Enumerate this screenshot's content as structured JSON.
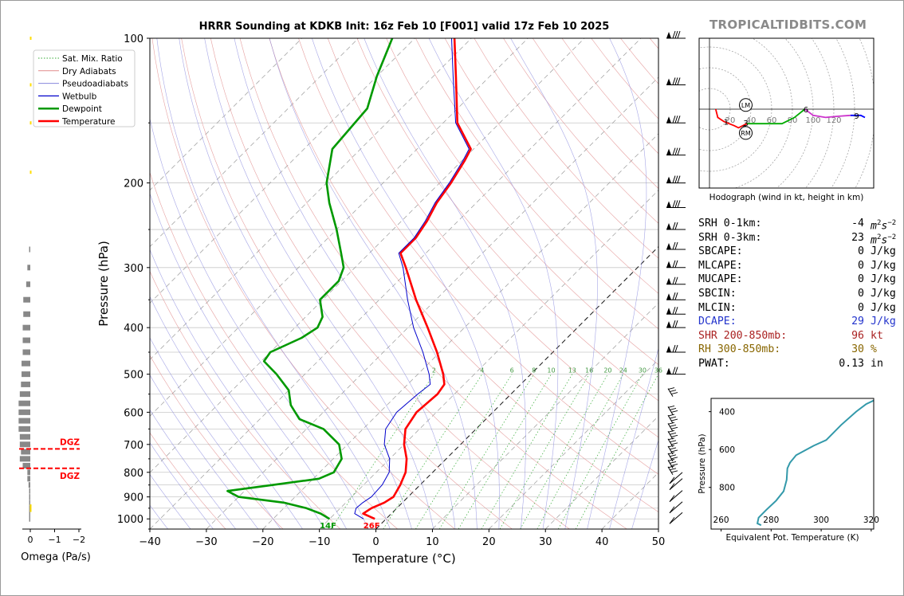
{
  "title": "HRRR Sounding at KDKB Init: 16z Feb 10 [F001] valid 17z Feb 10 2025",
  "brand": "TROPICALTIDBITS.COM",
  "colors": {
    "temperature": "#ff0000",
    "dewpoint": "#009900",
    "wetbulb": "#0000cc",
    "hodo_low": "#ff0000",
    "hodo_mid": "#00aa00",
    "hodo_upper": "#cc33cc",
    "hodo_top": "#0000ff",
    "theta_e": "#3399aa",
    "dgz": "#ff0000",
    "brand": "#8a8a8a"
  },
  "chart_data": [
    {
      "type": "line",
      "name": "skew-t",
      "xlabel": "Temperature (°C)",
      "ylabel": "Pressure (hPa)",
      "xlim": [
        -40,
        50
      ],
      "ylim": [
        1050,
        100
      ],
      "y_scale": "log",
      "x_ticks": [
        "−40",
        "−30",
        "−20",
        "−10",
        "0",
        "10",
        "20",
        "30",
        "40",
        "50"
      ],
      "y_ticks": [
        {
          "p": 100,
          "label": "100"
        },
        {
          "p": 200,
          "label": "200"
        },
        {
          "p": 300,
          "label": "300"
        },
        {
          "p": 400,
          "label": "400"
        },
        {
          "p": 500,
          "label": "500"
        },
        {
          "p": 600,
          "label": "600"
        },
        {
          "p": 700,
          "label": "700"
        },
        {
          "p": 800,
          "label": "800"
        },
        {
          "p": 900,
          "label": "900"
        },
        {
          "p": 1000,
          "label": "1000"
        }
      ],
      "legend": {
        "placement": "top-left",
        "entries": [
          "Sat. Mix. Ratio",
          "Dry Adiabats",
          "Pseudoadiabats",
          "Wetbulb",
          "Dewpoint",
          "Temperature"
        ]
      },
      "mixing_ratio_labels": [
        "2",
        "4",
        "6",
        "8",
        "10",
        "13",
        "16",
        "20",
        "24",
        "30",
        "36"
      ],
      "surface_labels": {
        "dewpoint": "14F",
        "temperature": "26F"
      },
      "series": [
        {
          "name": "Temperature",
          "points": [
            {
              "p": 1000,
              "t": -2.0
            },
            {
              "p": 975,
              "t": -5.0
            },
            {
              "p": 950,
              "t": -4.5
            },
            {
              "p": 925,
              "t": -3.2
            },
            {
              "p": 900,
              "t": -2.6
            },
            {
              "p": 850,
              "t": -3.5
            },
            {
              "p": 800,
              "t": -4.8
            },
            {
              "p": 750,
              "t": -7.0
            },
            {
              "p": 700,
              "t": -10.0
            },
            {
              "p": 650,
              "t": -12.5
            },
            {
              "p": 600,
              "t": -13.5
            },
            {
              "p": 550,
              "t": -13.0
            },
            {
              "p": 525,
              "t": -13.5
            },
            {
              "p": 500,
              "t": -15.5
            },
            {
              "p": 450,
              "t": -20.5
            },
            {
              "p": 400,
              "t": -26.5
            },
            {
              "p": 350,
              "t": -33.5
            },
            {
              "p": 300,
              "t": -41.0
            },
            {
              "p": 280,
              "t": -44.5
            },
            {
              "p": 260,
              "t": -44.5
            },
            {
              "p": 240,
              "t": -45.5
            },
            {
              "p": 220,
              "t": -47.0
            },
            {
              "p": 200,
              "t": -48.0
            },
            {
              "p": 180,
              "t": -49.5
            },
            {
              "p": 170,
              "t": -50.5
            },
            {
              "p": 150,
              "t": -57.5
            },
            {
              "p": 120,
              "t": -66.0
            },
            {
              "p": 100,
              "t": -73.0
            }
          ]
        },
        {
          "name": "Dewpoint",
          "points": [
            {
              "p": 1000,
              "t": -10.0
            },
            {
              "p": 975,
              "t": -12.5
            },
            {
              "p": 950,
              "t": -16.0
            },
            {
              "p": 925,
              "t": -21.0
            },
            {
              "p": 900,
              "t": -30.0
            },
            {
              "p": 875,
              "t": -33.0
            },
            {
              "p": 850,
              "t": -26.0
            },
            {
              "p": 825,
              "t": -19.0
            },
            {
              "p": 800,
              "t": -17.5
            },
            {
              "p": 750,
              "t": -18.5
            },
            {
              "p": 700,
              "t": -21.5
            },
            {
              "p": 650,
              "t": -27.0
            },
            {
              "p": 620,
              "t": -33.0
            },
            {
              "p": 580,
              "t": -37.0
            },
            {
              "p": 540,
              "t": -40.0
            },
            {
              "p": 500,
              "t": -45.0
            },
            {
              "p": 470,
              "t": -49.5
            },
            {
              "p": 450,
              "t": -50.0
            },
            {
              "p": 420,
              "t": -47.0
            },
            {
              "p": 400,
              "t": -46.0
            },
            {
              "p": 380,
              "t": -47.0
            },
            {
              "p": 350,
              "t": -50.5
            },
            {
              "p": 320,
              "t": -50.5
            },
            {
              "p": 300,
              "t": -52.0
            },
            {
              "p": 280,
              "t": -55.0
            },
            {
              "p": 250,
              "t": -60.0
            },
            {
              "p": 220,
              "t": -66.0
            },
            {
              "p": 200,
              "t": -70.0
            },
            {
              "p": 170,
              "t": -75.0
            },
            {
              "p": 140,
              "t": -76.0
            },
            {
              "p": 120,
              "t": -80.0
            },
            {
              "p": 100,
              "t": -84.0
            }
          ]
        },
        {
          "name": "Wetbulb",
          "points": [
            {
              "p": 1000,
              "t": -4.0
            },
            {
              "p": 975,
              "t": -6.5
            },
            {
              "p": 950,
              "t": -7.2
            },
            {
              "p": 925,
              "t": -7.0
            },
            {
              "p": 900,
              "t": -6.5
            },
            {
              "p": 850,
              "t": -6.7
            },
            {
              "p": 800,
              "t": -7.7
            },
            {
              "p": 750,
              "t": -10.0
            },
            {
              "p": 700,
              "t": -13.5
            },
            {
              "p": 650,
              "t": -16.0
            },
            {
              "p": 600,
              "t": -17.0
            },
            {
              "p": 550,
              "t": -16.5
            },
            {
              "p": 525,
              "t": -16.0
            },
            {
              "p": 500,
              "t": -18.0
            },
            {
              "p": 450,
              "t": -23.0
            },
            {
              "p": 400,
              "t": -29.0
            },
            {
              "p": 350,
              "t": -35.0
            },
            {
              "p": 300,
              "t": -41.5
            },
            {
              "p": 280,
              "t": -44.8
            },
            {
              "p": 260,
              "t": -44.8
            },
            {
              "p": 240,
              "t": -45.8
            },
            {
              "p": 220,
              "t": -47.3
            },
            {
              "p": 200,
              "t": -48.3
            },
            {
              "p": 180,
              "t": -49.8
            },
            {
              "p": 170,
              "t": -50.8
            },
            {
              "p": 150,
              "t": -57.8
            },
            {
              "p": 120,
              "t": -66.5
            },
            {
              "p": 100,
              "t": -73.5
            }
          ]
        }
      ],
      "wind_barbs_hpa": [
        100,
        125,
        150,
        175,
        200,
        225,
        250,
        275,
        300,
        325,
        350,
        375,
        400,
        450,
        500,
        550,
        600,
        625,
        650,
        675,
        700,
        725,
        750,
        775,
        800,
        825,
        850,
        900,
        950,
        1000
      ]
    },
    {
      "type": "bar",
      "name": "omega",
      "xlabel": "Omega (Pa/s)",
      "x_ticks": [
        "0",
        "−1",
        "−2"
      ],
      "dgz_label": "DGZ",
      "dgz_levels_hpa": [
        715,
        785
      ],
      "bars": [
        {
          "p": 1000,
          "omega": 0.02
        },
        {
          "p": 975,
          "omega": 0.02
        },
        {
          "p": 950,
          "omega": 0.02
        },
        {
          "p": 925,
          "omega": 0.02
        },
        {
          "p": 900,
          "omega": 0.02
        },
        {
          "p": 875,
          "omega": 0.02
        },
        {
          "p": 850,
          "omega": 0.03
        },
        {
          "p": 825,
          "omega": 0.05
        },
        {
          "p": 800,
          "omega": 0.05
        },
        {
          "p": 775,
          "omega": 0.13
        },
        {
          "p": 750,
          "omega": 0.18
        },
        {
          "p": 725,
          "omega": 0.16
        },
        {
          "p": 700,
          "omega": 0.18
        },
        {
          "p": 675,
          "omega": 0.18
        },
        {
          "p": 650,
          "omega": 0.2
        },
        {
          "p": 625,
          "omega": 0.2
        },
        {
          "p": 600,
          "omega": 0.2
        },
        {
          "p": 575,
          "omega": 0.2
        },
        {
          "p": 550,
          "omega": 0.18
        },
        {
          "p": 525,
          "omega": 0.16
        },
        {
          "p": 500,
          "omega": 0.15
        },
        {
          "p": 475,
          "omega": 0.15
        },
        {
          "p": 450,
          "omega": 0.13
        },
        {
          "p": 425,
          "omega": 0.13
        },
        {
          "p": 400,
          "omega": 0.13
        },
        {
          "p": 375,
          "omega": 0.12
        },
        {
          "p": 350,
          "omega": 0.12
        },
        {
          "p": 325,
          "omega": 0.07
        },
        {
          "p": 300,
          "omega": 0.05
        },
        {
          "p": 275,
          "omega": 0.02
        }
      ],
      "trace_levels_hpa": [
        960,
        950,
        940,
        190,
        150,
        125,
        100
      ]
    },
    {
      "type": "line",
      "name": "hodograph",
      "caption": "Hodograph (wind in kt, height in km)",
      "ring_labels": [
        "20",
        "40",
        "60",
        "80",
        "100",
        "120"
      ],
      "storm_motion_labels": [
        "LM",
        "RM"
      ],
      "height_labels": [
        "1",
        "2",
        "3",
        "6",
        "9"
      ],
      "segments": [
        {
          "color_key": "hodo_low",
          "points": [
            [
              6,
              0
            ],
            [
              8,
              -8
            ],
            [
              14,
              -12
            ],
            [
              24,
              -16
            ],
            [
              28,
              -18
            ],
            [
              36,
              -14
            ]
          ]
        },
        {
          "color_key": "hodo_mid",
          "points": [
            [
              36,
              -14
            ],
            [
              50,
              -14
            ],
            [
              70,
              -14
            ],
            [
              82,
              -8
            ],
            [
              92,
              0
            ]
          ]
        },
        {
          "color_key": "hodo_upper",
          "points": [
            [
              92,
              0
            ],
            [
              100,
              -6
            ],
            [
              112,
              -8
            ],
            [
              122,
              -7
            ],
            [
              136,
              -6
            ]
          ]
        },
        {
          "color_key": "hodo_top",
          "points": [
            [
              136,
              -6
            ],
            [
              146,
              -6
            ],
            [
              150,
              -8
            ]
          ]
        }
      ],
      "markers": [
        {
          "label": "1",
          "u": 16,
          "v": -12
        },
        {
          "label": "2",
          "u": 34,
          "v": -18
        },
        {
          "label": "3",
          "u": 35,
          "v": -13
        },
        {
          "label": "6",
          "u": 93,
          "v": 0
        },
        {
          "label": "9",
          "u": 142,
          "v": -6
        }
      ],
      "storm_motion": [
        {
          "label": "LM",
          "u": 35,
          "v": 4
        },
        {
          "label": "RM",
          "u": 35,
          "v": -23
        }
      ]
    },
    {
      "type": "line",
      "name": "theta-e",
      "xlabel": "Equivalent Pot. Temperature (K)",
      "ylabel": "Pressure (hPa)",
      "xlim": [
        256,
        321
      ],
      "ylim": [
        1020,
        330
      ],
      "x_ticks": [
        "260",
        "280",
        "300",
        "320"
      ],
      "y_ticks": [
        {
          "p": 400,
          "label": "400"
        },
        {
          "p": 600,
          "label": "600"
        },
        {
          "p": 800,
          "label": "800"
        }
      ],
      "points": [
        {
          "p": 1000,
          "t": 276
        },
        {
          "p": 990,
          "t": 274.5
        },
        {
          "p": 960,
          "t": 275
        },
        {
          "p": 920,
          "t": 278
        },
        {
          "p": 870,
          "t": 282
        },
        {
          "p": 820,
          "t": 285
        },
        {
          "p": 760,
          "t": 286.2
        },
        {
          "p": 700,
          "t": 286.5
        },
        {
          "p": 670,
          "t": 287.5
        },
        {
          "p": 630,
          "t": 290
        },
        {
          "p": 580,
          "t": 297
        },
        {
          "p": 550,
          "t": 302
        },
        {
          "p": 470,
          "t": 308
        },
        {
          "p": 400,
          "t": 314
        },
        {
          "p": 360,
          "t": 318
        },
        {
          "p": 335,
          "t": 322
        }
      ]
    }
  ],
  "indices": [
    {
      "name": "SRH 0-1km:",
      "value": "-4",
      "unit": "m",
      "unit_exp": "2",
      "unit_tail": "s",
      "unit_tail_exp": "−2",
      "color": "#000000"
    },
    {
      "name": "SRH 0-3km:",
      "value": "23",
      "unit": "m",
      "unit_exp": "2",
      "unit_tail": "s",
      "unit_tail_exp": "−2",
      "color": "#000000"
    },
    {
      "name": "SBCAPE:",
      "value": "0",
      "unit": "J/kg",
      "color": "#000000"
    },
    {
      "name": "MLCAPE:",
      "value": "0",
      "unit": "J/kg",
      "color": "#000000"
    },
    {
      "name": "MUCAPE:",
      "value": "0",
      "unit": "J/kg",
      "color": "#000000"
    },
    {
      "name": "SBCIN:",
      "value": "0",
      "unit": "J/kg",
      "color": "#000000"
    },
    {
      "name": "MLCIN:",
      "value": "0",
      "unit": "J/kg",
      "color": "#000000"
    },
    {
      "name": "DCAPE:",
      "value": "29",
      "unit": "J/kg",
      "color": "#2233cc"
    },
    {
      "name": "SHR 200-850mb:",
      "value": "96",
      "unit": "kt",
      "color": "#aa2222"
    },
    {
      "name": "RH 300-850mb:",
      "value": "30",
      "unit": "%",
      "color": "#886600"
    },
    {
      "name": "PWAT:",
      "value": "0.13",
      "unit": "in",
      "color": "#000000"
    }
  ]
}
